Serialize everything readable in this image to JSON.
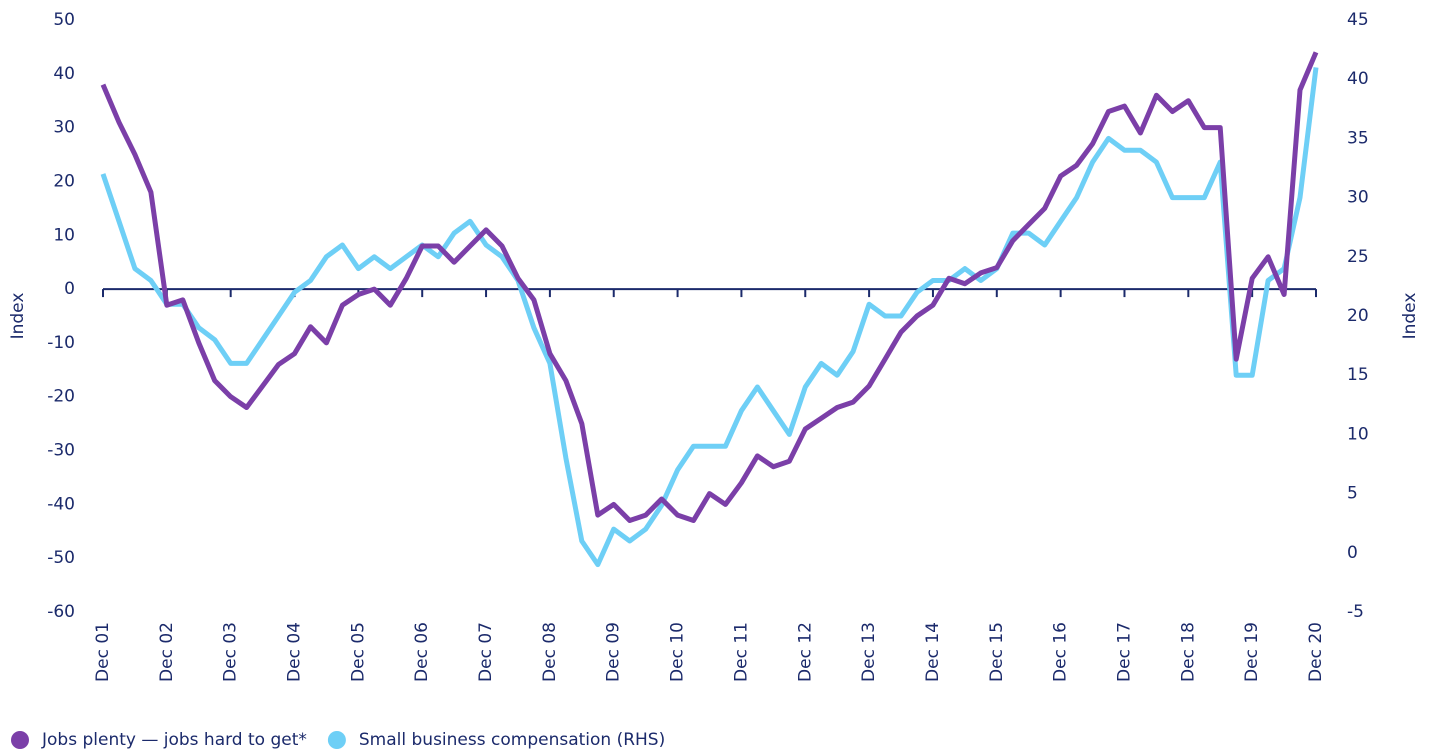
{
  "chart_data": {
    "type": "line",
    "categories": [
      "Dec 01",
      null,
      null,
      null,
      "Dec 02",
      null,
      null,
      null,
      "Dec 03",
      null,
      null,
      null,
      "Dec 04",
      null,
      null,
      null,
      "Dec 05",
      null,
      null,
      null,
      "Dec 06",
      null,
      null,
      null,
      "Dec 07",
      null,
      null,
      null,
      "Dec 08",
      null,
      null,
      null,
      "Dec 09",
      null,
      null,
      null,
      "Dec 10",
      null,
      null,
      null,
      "Dec 11",
      null,
      null,
      null,
      "Dec 12",
      null,
      null,
      null,
      "Dec 13",
      null,
      null,
      null,
      "Dec 14",
      null,
      null,
      null,
      "Dec 15",
      null,
      null,
      null,
      "Dec 16",
      null,
      null,
      null,
      "Dec 17",
      null,
      null,
      null,
      "Dec 18",
      null,
      null,
      null,
      "Dec 19",
      null,
      null,
      null,
      "Dec 20"
    ],
    "series": [
      {
        "name": "Jobs plenty — jobs hard to get*",
        "color": "#7b3fa8",
        "axis": "y",
        "values": [
          38,
          31,
          25,
          18,
          -3,
          -2,
          -10,
          -17,
          -20,
          -22,
          -18,
          -14,
          -12,
          -7,
          -10,
          -3,
          -1,
          0,
          -3,
          2,
          8,
          8,
          5,
          8,
          11,
          8,
          2,
          -2,
          -12,
          -17,
          -25,
          -42,
          -40,
          -43,
          -42,
          -39,
          -42,
          -43,
          -38,
          -40,
          -36,
          -31,
          -33,
          -32,
          -26,
          -24,
          -22,
          -21,
          -18,
          -13,
          -8,
          -5,
          -3,
          2,
          1,
          3,
          4,
          9,
          12,
          15,
          21,
          23,
          27,
          33,
          34,
          29,
          36,
          33,
          35,
          30,
          30,
          -13,
          2,
          6,
          -1,
          37,
          44
        ]
      },
      {
        "name": "Small business compensation (RHS)",
        "color": "#6ecff6",
        "axis": "y2",
        "values": [
          32,
          28,
          24,
          23,
          21,
          21,
          19,
          18,
          16,
          16,
          18,
          20,
          22,
          23,
          25,
          26,
          24,
          25,
          24,
          25,
          26,
          25,
          27,
          28,
          26,
          25,
          23,
          19,
          16,
          8,
          1,
          -1,
          2,
          1,
          2,
          4,
          7,
          9,
          9,
          9,
          12,
          14,
          12,
          10,
          14,
          16,
          15,
          17,
          21,
          20,
          20,
          22,
          23,
          23,
          24,
          23,
          24,
          27,
          27,
          26,
          28,
          30,
          33,
          35,
          34,
          34,
          33,
          30,
          30,
          30,
          33,
          15,
          15,
          23,
          24,
          30,
          41
        ]
      }
    ],
    "y_label": "Index",
    "y2_label": "Index",
    "ylim": [
      -60,
      50
    ],
    "yticks": [
      -60,
      -50,
      -40,
      -30,
      -20,
      -10,
      0,
      10,
      20,
      30,
      40,
      50
    ],
    "y2lim": [
      -5,
      45
    ],
    "y2ticks": [
      -5,
      0,
      5,
      10,
      15,
      20,
      25,
      30,
      35,
      40,
      45
    ],
    "legend": "bottom-left"
  }
}
